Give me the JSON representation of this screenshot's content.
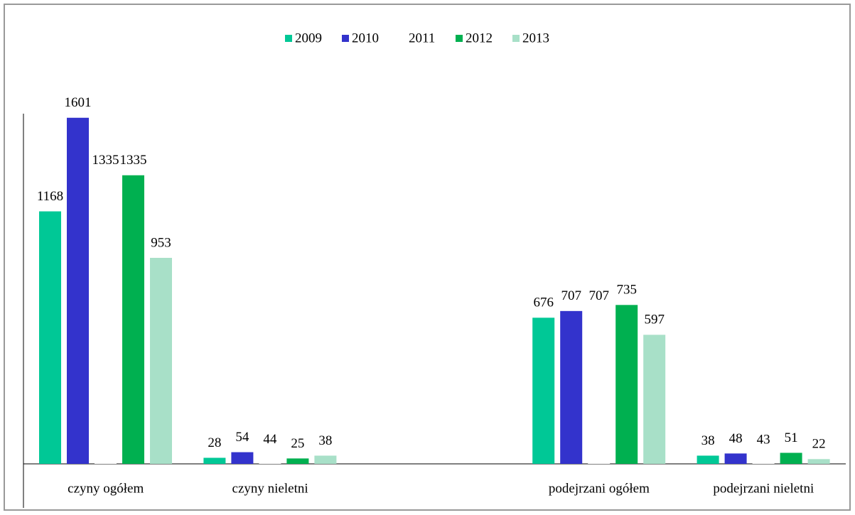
{
  "chart_data": {
    "type": "bar",
    "categories": [
      "czyny ogółem",
      "czyny nieletni",
      null,
      "podejrzani ogółem",
      "podejrzani nieletni"
    ],
    "series": [
      {
        "name": "2009",
        "color": "#00c896",
        "values": [
          1168,
          28,
          null,
          676,
          38
        ]
      },
      {
        "name": "2010",
        "color": "#3333cc",
        "values": [
          1601,
          54,
          null,
          707,
          48
        ]
      },
      {
        "name": "2011",
        "color": "#ffffff",
        "values": [
          1335,
          44,
          null,
          707,
          43
        ]
      },
      {
        "name": "2012",
        "color": "#00b050",
        "values": [
          1335,
          25,
          null,
          735,
          51
        ]
      },
      {
        "name": "2013",
        "color": "#a8e0c8",
        "values": [
          953,
          38,
          null,
          597,
          22
        ]
      }
    ],
    "ylim": [
      0,
      1620
    ],
    "legend": "top"
  }
}
